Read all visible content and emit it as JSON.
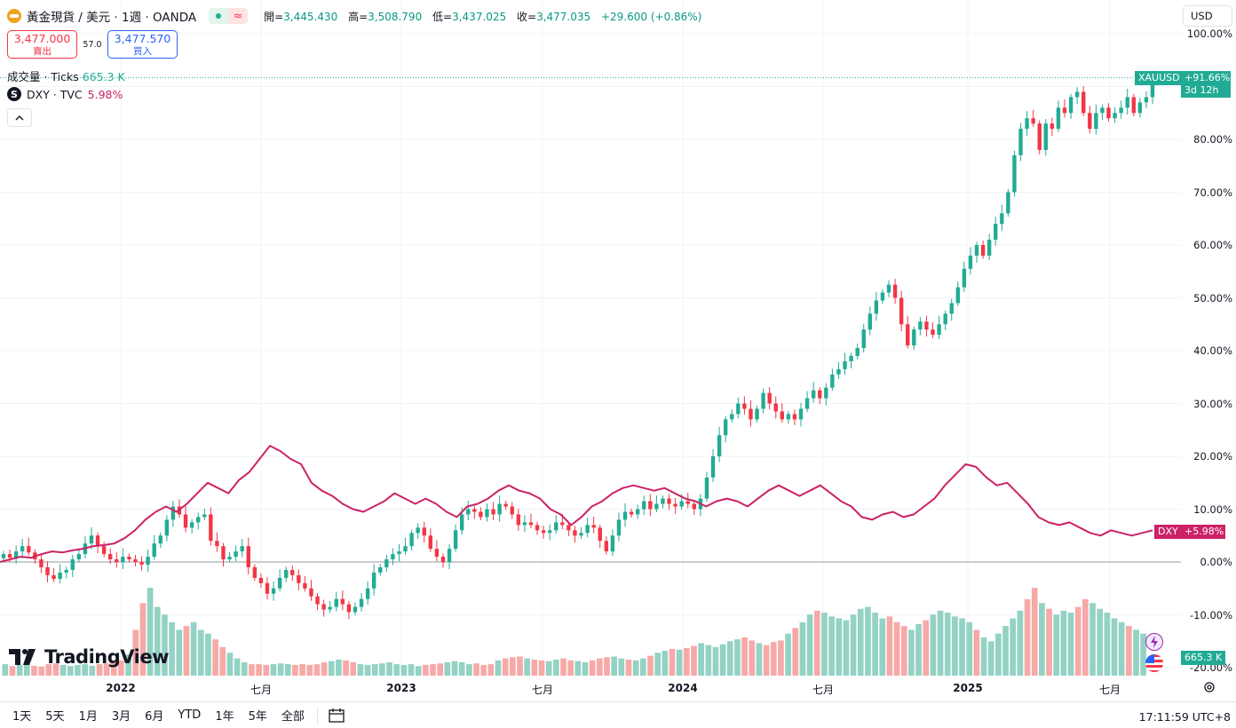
{
  "header": {
    "symbol_title": "黃金現貨 / 美元 · 1週 · OANDA",
    "status_dot": "market-open",
    "ohlc": {
      "open_label": "開=",
      "open": "3,445.430",
      "high_label": "高=",
      "high": "3,508.790",
      "low_label": "低=",
      "low": "3,437.025",
      "close_label": "收=",
      "close": "3,477.035",
      "change": "+29.600 (+0.86%)"
    }
  },
  "trade": {
    "sell_price": "3,477.000",
    "sell_label": "賣出",
    "spread": "57.0",
    "buy_price": "3,477.570",
    "buy_label": "買入"
  },
  "volume_legend": {
    "label": "成交量 · Ticks",
    "value": "665.3 K"
  },
  "dxy_legend": {
    "icon": "S",
    "label": "DXY · TVC",
    "value": "5.98%"
  },
  "collapse_label": "^",
  "currency": "USD",
  "price_axis": [
    "100.00%",
    "80.00%",
    "70.00%",
    "60.00%",
    "50.00%",
    "40.00%",
    "30.00%",
    "20.00%",
    "10.00%",
    "0.00%",
    "-10.00%",
    "-20.00%"
  ],
  "tags": {
    "xau_symbol": "XAUUSD",
    "xau_pct": "+91.66%",
    "xau_countdown": "3d 12h",
    "dxy_symbol": "DXY",
    "dxy_pct": "+5.98%",
    "volume": "665.3 K"
  },
  "time_axis": {
    "y2022": "2022",
    "jul2022": "七月",
    "y2023": "2023",
    "jul2023": "七月",
    "y2024": "2024",
    "jul2024": "七月",
    "y2025": "2025",
    "jul2025": "七月"
  },
  "ranges": [
    "1天",
    "5天",
    "1月",
    "3月",
    "6月",
    "YTD",
    "1年",
    "5年",
    "全部"
  ],
  "clock": "17:11:59 UTC+8",
  "logo_text": "TradingView",
  "colors": {
    "up": "#22ab94",
    "down": "#f23645",
    "dxy": "#cc2266",
    "vol_up": "#93d2c4",
    "vol_down": "#f7a9a7"
  },
  "chart_data": {
    "type": "candlestick",
    "title": "黃金現貨 / 美元 · 1週 · OANDA",
    "scale": "percent",
    "y_range_pct": [
      -21,
      101
    ],
    "start_price": 1830.0,
    "gold_pct_closes": [
      1.5,
      0.8,
      2.0,
      3.0,
      1.8,
      0.5,
      -1.0,
      -2.5,
      -3.2,
      -2.0,
      -1.5,
      0.5,
      1.5,
      3.5,
      5.0,
      3.0,
      1.5,
      0.5,
      0.0,
      1.0,
      0.5,
      0.0,
      -0.5,
      1.0,
      3.5,
      5.0,
      8.0,
      10.5,
      9.0,
      6.5,
      7.5,
      8.5,
      9.0,
      4.0,
      3.0,
      0.5,
      1.0,
      2.0,
      3.0,
      -1.0,
      -3.0,
      -4.0,
      -6.0,
      -5.0,
      -3.0,
      -1.5,
      -2.5,
      -4.0,
      -5.0,
      -6.5,
      -8.0,
      -9.0,
      -8.5,
      -7.0,
      -8.0,
      -9.5,
      -8.5,
      -7.0,
      -5.0,
      -2.0,
      -1.0,
      0.5,
      1.5,
      2.0,
      3.0,
      5.5,
      6.5,
      5.0,
      2.5,
      1.0,
      0.0,
      2.5,
      6.0,
      9.0,
      10.0,
      9.5,
      8.5,
      10.0,
      9.0,
      11.0,
      10.5,
      9.0,
      7.0,
      7.5,
      7.0,
      6.0,
      5.5,
      6.0,
      7.5,
      7.0,
      6.0,
      5.0,
      5.5,
      7.0,
      6.5,
      4.0,
      2.0,
      5.0,
      8.0,
      9.5,
      9.0,
      10.0,
      11.5,
      10.0,
      11.0,
      12.0,
      11.0,
      10.5,
      11.5,
      11.0,
      10.0,
      12.0,
      16.0,
      20.0,
      24.0,
      27.0,
      28.0,
      30.0,
      29.0,
      27.0,
      29.0,
      32.0,
      30.0,
      28.5,
      27.0,
      28.0,
      27.0,
      29.0,
      31.0,
      32.5,
      31.0,
      33.0,
      35.5,
      36.5,
      38.0,
      39.0,
      40.5,
      44.0,
      47.0,
      49.5,
      51.0,
      52.5,
      50.0,
      45.0,
      41.0,
      44.0,
      45.5,
      44.0,
      43.0,
      45.0,
      47.0,
      49.0,
      52.0,
      55.5,
      58.0,
      60.0,
      58.0,
      61.0,
      64.0,
      66.0,
      70.0,
      77.0,
      82.0,
      84.0,
      83.0,
      78.0,
      83.0,
      82.0,
      86.0,
      85.0,
      88.0,
      89.0,
      85.0,
      82.0,
      85.0,
      86.0,
      84.0,
      85.0,
      86.0,
      88.0,
      85.0,
      87.0,
      88.0,
      91.66
    ],
    "dxy_pct": [
      0.0,
      0.5,
      1.0,
      0.8,
      1.5,
      2.0,
      1.8,
      2.2,
      2.5,
      3.0,
      3.2,
      3.5,
      4.5,
      6.0,
      8.0,
      9.5,
      10.5,
      9.5,
      11.0,
      13.0,
      15.0,
      14.0,
      13.0,
      15.5,
      17.0,
      19.5,
      22.0,
      21.0,
      19.5,
      18.5,
      15.0,
      13.5,
      12.5,
      11.0,
      10.0,
      9.5,
      10.5,
      11.5,
      13.0,
      12.0,
      11.0,
      12.0,
      11.0,
      9.5,
      8.5,
      10.5,
      11.0,
      12.0,
      13.5,
      14.5,
      13.5,
      13.0,
      12.0,
      10.0,
      9.0,
      7.0,
      8.5,
      10.5,
      11.5,
      13.0,
      14.0,
      14.5,
      14.0,
      13.5,
      14.0,
      13.0,
      12.0,
      11.5,
      10.5,
      11.5,
      12.0,
      11.5,
      10.5,
      12.0,
      13.5,
      14.5,
      13.5,
      12.5,
      13.5,
      14.5,
      13.0,
      11.5,
      10.5,
      8.5,
      8.0,
      9.0,
      9.5,
      8.5,
      9.0,
      10.5,
      12.0,
      14.5,
      16.5,
      18.5,
      18.0,
      16.0,
      14.5,
      15.0,
      13.0,
      11.0,
      8.5,
      7.5,
      7.0,
      7.5,
      6.5,
      5.5,
      5.0,
      6.0,
      5.5,
      5.0,
      5.5,
      5.98
    ],
    "volume_k": [
      30,
      25,
      28,
      30,
      26,
      24,
      30,
      32,
      28,
      25,
      28,
      30,
      26,
      30,
      32,
      35,
      40,
      55,
      120,
      190,
      230,
      180,
      160,
      140,
      120,
      130,
      140,
      120,
      110,
      95,
      75,
      60,
      45,
      35,
      30,
      30,
      28,
      30,
      32,
      30,
      28,
      30,
      28,
      30,
      35,
      38,
      42,
      40,
      35,
      30,
      28,
      30,
      32,
      35,
      30,
      28,
      30,
      25,
      28,
      30,
      32,
      35,
      38,
      35,
      30,
      32,
      28,
      30,
      40,
      45,
      48,
      50,
      45,
      42,
      40,
      38,
      42,
      45,
      40,
      38,
      35,
      40,
      45,
      48,
      50,
      45,
      42,
      40,
      45,
      52,
      60,
      65,
      70,
      68,
      72,
      78,
      85,
      80,
      75,
      82,
      90,
      95,
      100,
      92,
      85,
      80,
      88,
      92,
      110,
      125,
      140,
      160,
      170,
      165,
      155,
      150,
      145,
      160,
      175,
      180,
      165,
      150,
      155,
      140,
      130,
      120,
      135,
      145,
      160,
      170,
      165,
      155,
      150,
      140,
      120,
      100,
      90,
      110,
      130,
      150,
      170,
      200,
      230,
      190,
      175,
      160,
      170,
      165,
      180,
      200,
      190,
      175,
      165,
      150,
      140,
      130,
      120,
      110
    ],
    "volume_last": "665.3 K"
  }
}
